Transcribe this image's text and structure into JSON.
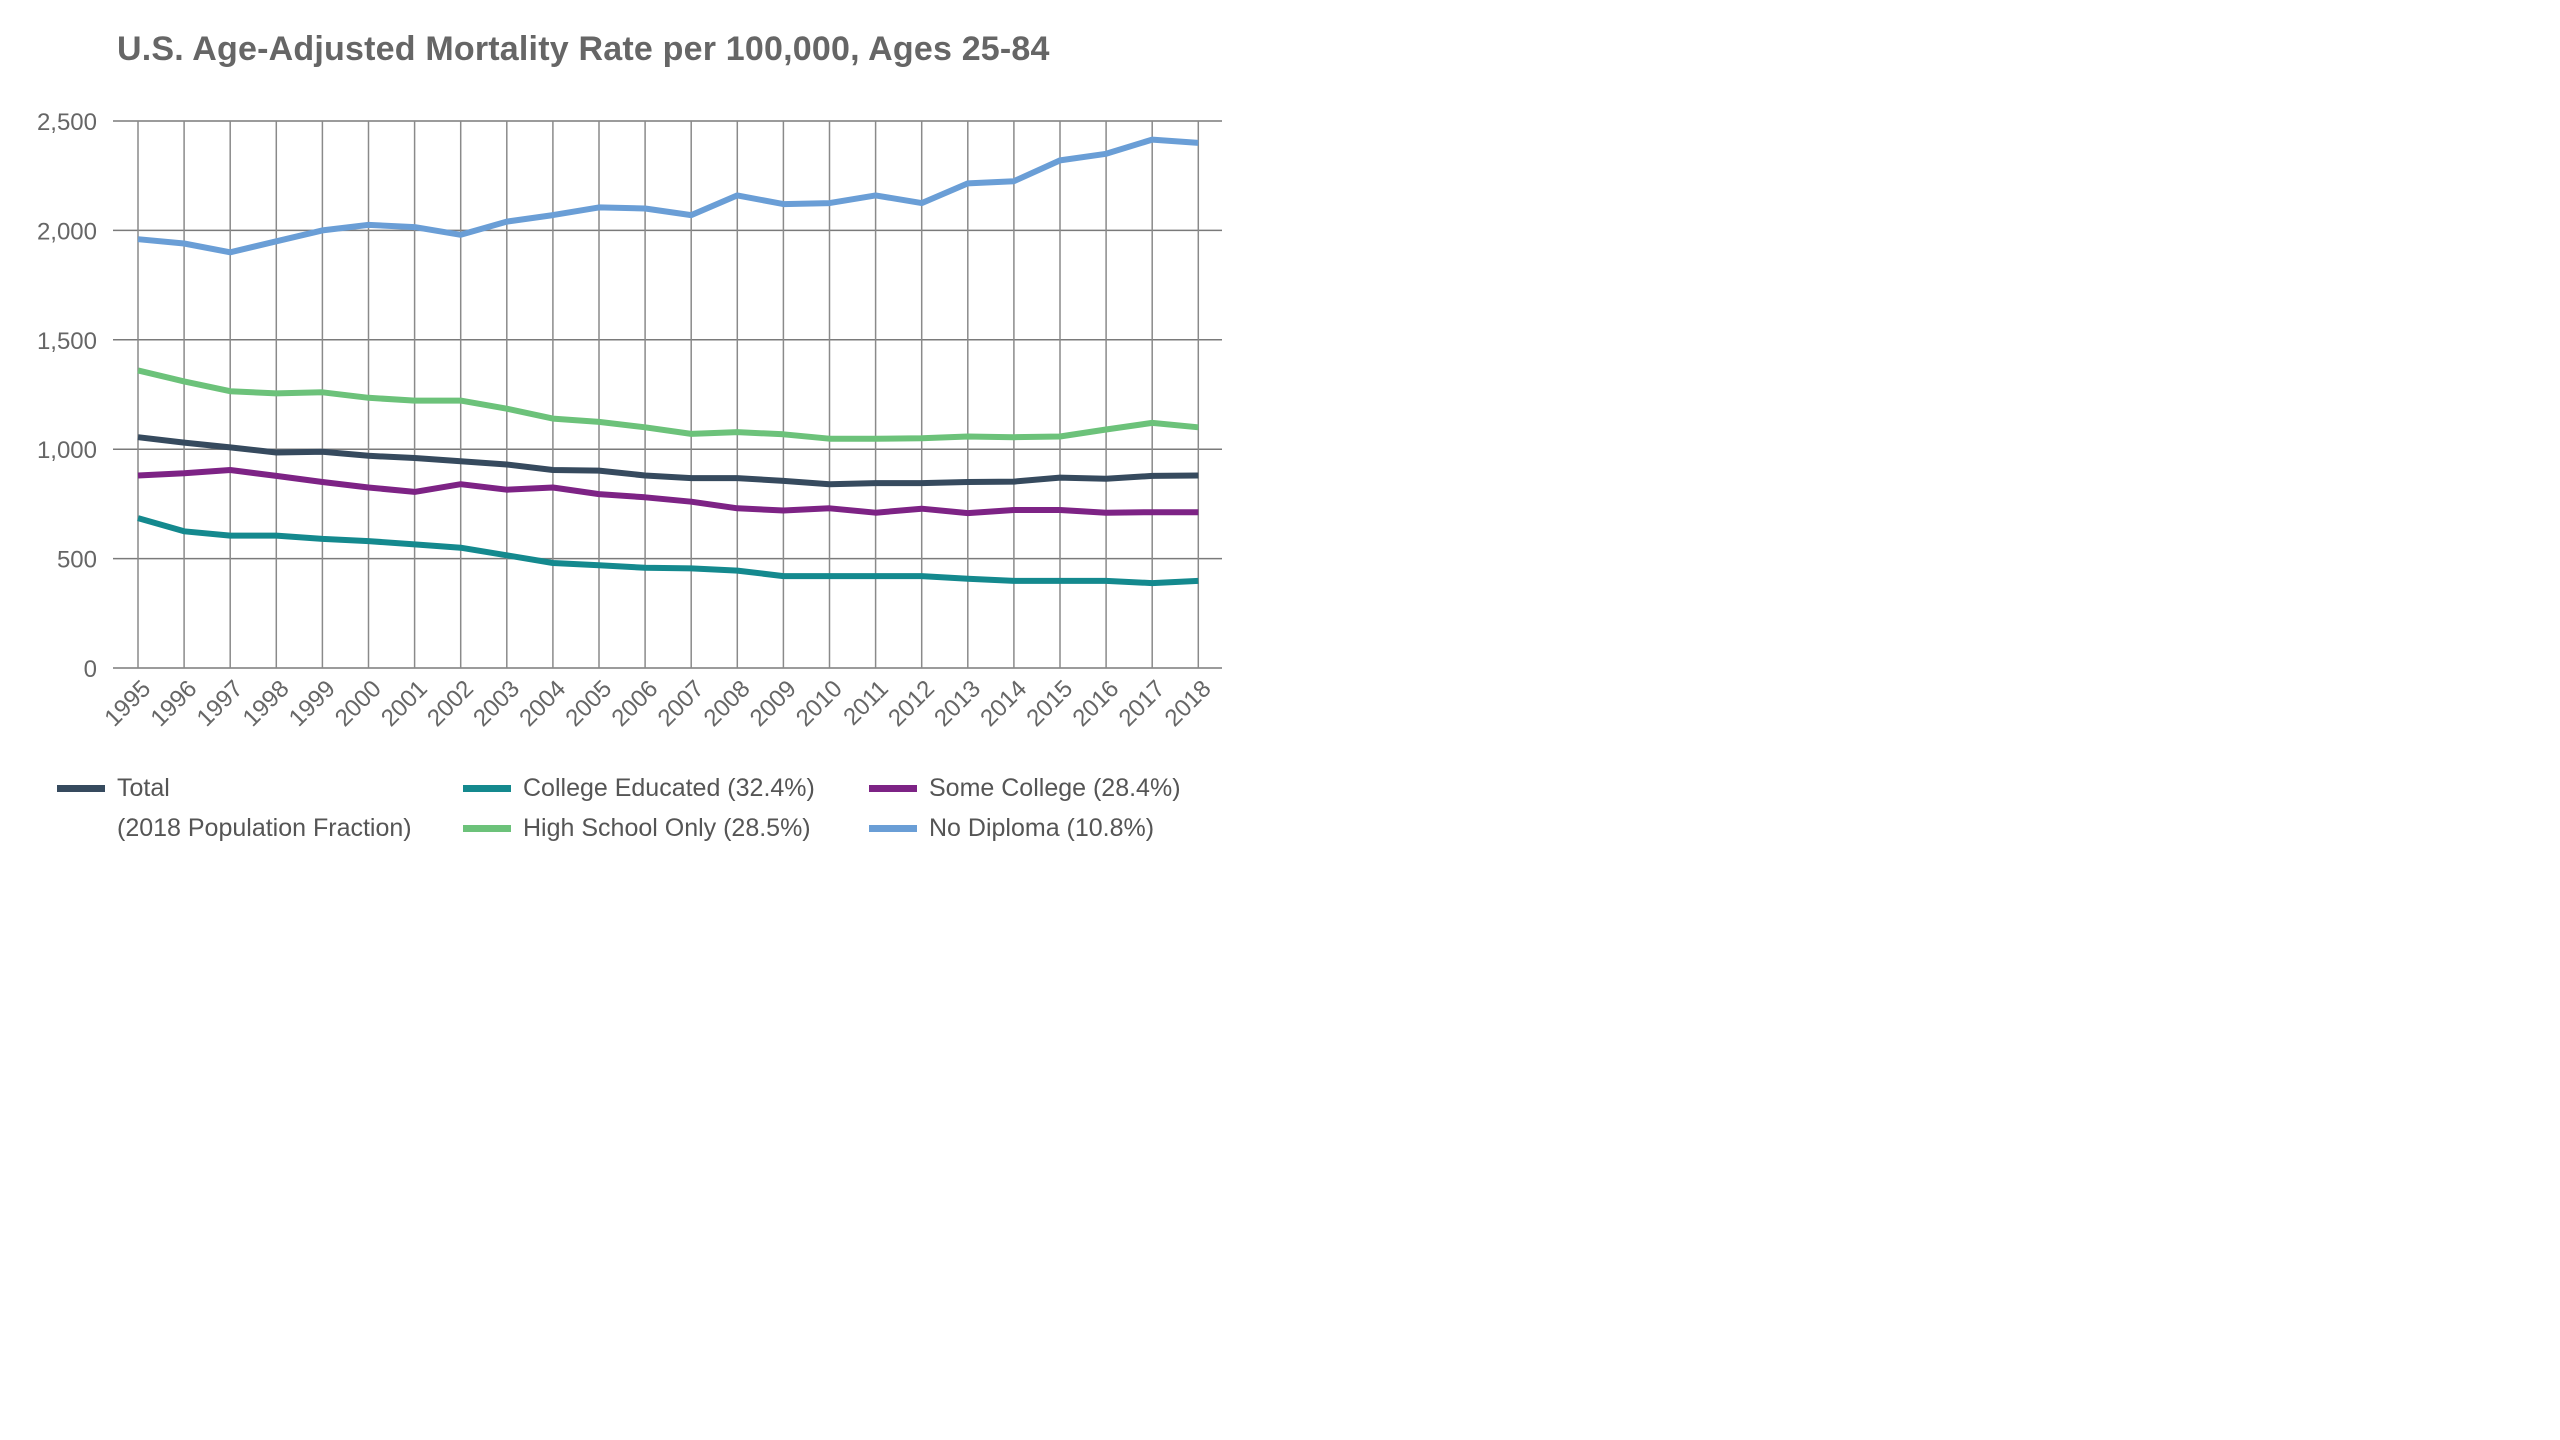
{
  "chart_data": {
    "type": "line",
    "title": "U.S. Age-Adjusted Mortality Rate per 100,000, Ages 25-84",
    "xlabel": "",
    "ylabel": "",
    "ylim": [
      0,
      2500
    ],
    "yticks": [
      "0",
      "500",
      "1,000",
      "1,500",
      "2,000",
      "2,500"
    ],
    "ytick_values": [
      0,
      500,
      1000,
      1500,
      2000,
      2500
    ],
    "grid": true,
    "legend_position": "bottom",
    "legend_note": "(2018 Population Fraction)",
    "x": [
      "1995",
      "1996",
      "1997",
      "1998",
      "1999",
      "2000",
      "2001",
      "2002",
      "2003",
      "2004",
      "2005",
      "2006",
      "2007",
      "2008",
      "2009",
      "2010",
      "2011",
      "2012",
      "2013",
      "2014",
      "2015",
      "2016",
      "2017",
      "2018"
    ],
    "series": [
      {
        "name": "Total",
        "color": "#364a5e",
        "values": [
          1055,
          1030,
          1008,
          985,
          988,
          970,
          960,
          945,
          930,
          905,
          902,
          880,
          868,
          868,
          855,
          840,
          845,
          845,
          850,
          852,
          870,
          865,
          878,
          880
        ]
      },
      {
        "name": "College Educated (32.4%)",
        "color": "#14898e",
        "values": [
          685,
          625,
          605,
          605,
          590,
          580,
          565,
          550,
          515,
          480,
          470,
          458,
          455,
          445,
          420,
          420,
          420,
          420,
          408,
          398,
          398,
          398,
          388,
          398
        ]
      },
      {
        "name": "Some College (28.4%)",
        "color": "#7d2385",
        "values": [
          880,
          890,
          905,
          878,
          850,
          825,
          805,
          840,
          815,
          825,
          795,
          780,
          760,
          730,
          720,
          730,
          710,
          728,
          708,
          722,
          722,
          710,
          712,
          712
        ]
      },
      {
        "name": "High School Only (28.5%)",
        "color": "#6cc27a",
        "values": [
          1360,
          1310,
          1265,
          1255,
          1260,
          1235,
          1222,
          1222,
          1185,
          1140,
          1125,
          1100,
          1070,
          1078,
          1068,
          1048,
          1048,
          1050,
          1058,
          1055,
          1058,
          1090,
          1120,
          1100
        ]
      },
      {
        "name": "No Diploma (10.8%)",
        "color": "#6a9ed6",
        "values": [
          1960,
          1940,
          1900,
          1950,
          2000,
          2025,
          2015,
          1980,
          2040,
          2070,
          2105,
          2100,
          2070,
          2160,
          2120,
          2125,
          2160,
          2125,
          2215,
          2225,
          2320,
          2350,
          2415,
          2400
        ]
      }
    ]
  },
  "legend": {
    "total": "Total",
    "college": "College Educated (32.4%)",
    "some_college": "Some College (28.4%)",
    "high_school": "High School Only (28.5%)",
    "no_diploma": "No Diploma (10.8%)"
  }
}
